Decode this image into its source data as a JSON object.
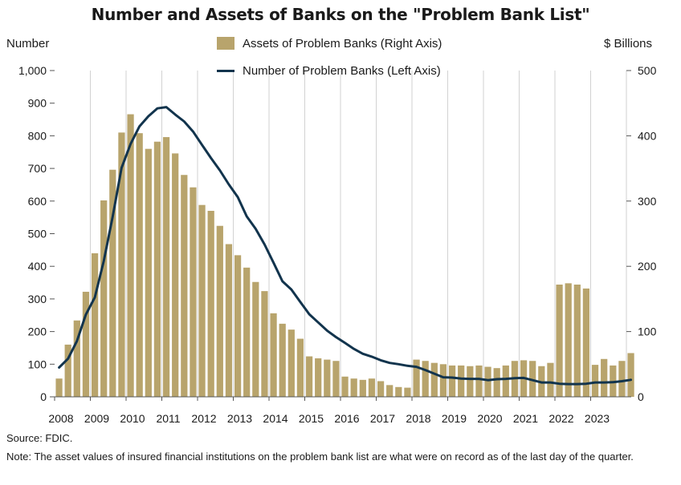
{
  "chart_data": {
    "type": "bar",
    "title": "Number and Assets of Banks on the \"Problem Bank List\"",
    "left_axis_label": "Number",
    "right_axis_label": "$ Billions",
    "ylim_left": [
      0,
      1000
    ],
    "ylim_right": [
      0,
      500
    ],
    "yticks_left": [
      "0",
      "100",
      "200",
      "300",
      "400",
      "500",
      "600",
      "700",
      "800",
      "900",
      "1,000"
    ],
    "yticks_right": [
      "0",
      "100",
      "200",
      "300",
      "400",
      "500"
    ],
    "x_year_labels": [
      "2008",
      "2009",
      "2010",
      "2011",
      "2012",
      "2013",
      "2014",
      "2015",
      "2016",
      "2017",
      "2018",
      "2019",
      "2020",
      "2021",
      "2022",
      "2023"
    ],
    "grid": "vertical lines at year boundaries",
    "legend_position": "top-center",
    "series": [
      {
        "name": "Assets of Problem Banks (Right Axis)",
        "type": "bar",
        "axis": "right",
        "color": "#b8a46c",
        "values": [
          28,
          80,
          117,
          161,
          220,
          301,
          348,
          405,
          433,
          404,
          380,
          391,
          398,
          373,
          340,
          321,
          294,
          285,
          262,
          234,
          217,
          198,
          176,
          162,
          128,
          112,
          103,
          89,
          62,
          59,
          57,
          55,
          31,
          28,
          26,
          28,
          24,
          18,
          15,
          14,
          57,
          55,
          52,
          50,
          48,
          48,
          47,
          48,
          46,
          44,
          48,
          55,
          56,
          55,
          47,
          52,
          172,
          174,
          172,
          166,
          49,
          58,
          48,
          55,
          67
        ]
      },
      {
        "name": "Number of Problem Banks (Left Axis)",
        "type": "line",
        "axis": "left",
        "color": "#12344d",
        "values": [
          90,
          117,
          171,
          252,
          305,
          416,
          552,
          702,
          775,
          829,
          860,
          884,
          888,
          865,
          844,
          813,
          772,
          732,
          694,
          651,
          612,
          553,
          515,
          467,
          411,
          354,
          329,
          291,
          253,
          228,
          203,
          183,
          165,
          147,
          132,
          123,
          112,
          104,
          100,
          95,
          92,
          82,
          71,
          60,
          59,
          56,
          55,
          55,
          51,
          54,
          55,
          57,
          58,
          51,
          44,
          44,
          40,
          39,
          39,
          40,
          44,
          44,
          45,
          48,
          52
        ]
      }
    ]
  },
  "footer": {
    "source": "Source: FDIC.",
    "note": "Note: The asset values of insured financial institutions on the problem bank list are what were on record as of the last day of the quarter."
  }
}
